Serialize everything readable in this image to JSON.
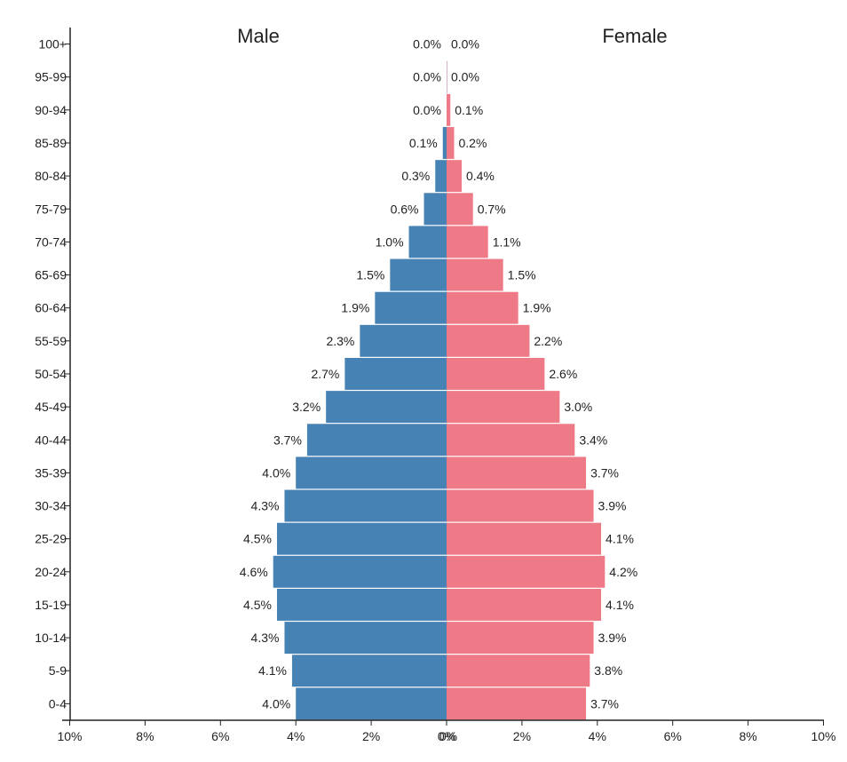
{
  "chart_data": {
    "type": "bar",
    "orientation": "horizontal",
    "categories": [
      "100+",
      "95-99",
      "90-94",
      "85-89",
      "80-84",
      "75-79",
      "70-74",
      "65-69",
      "60-64",
      "55-59",
      "50-54",
      "45-49",
      "40-44",
      "35-39",
      "30-34",
      "25-29",
      "20-24",
      "15-19",
      "10-14",
      "5-9",
      "0-4"
    ],
    "series": [
      {
        "name": "Male",
        "color": "#4682b4",
        "values": [
          0.0,
          0.0,
          0.0,
          0.1,
          0.3,
          0.6,
          1.0,
          1.5,
          1.9,
          2.3,
          2.7,
          3.2,
          3.7,
          4.0,
          4.3,
          4.5,
          4.6,
          4.5,
          4.3,
          4.1,
          4.0
        ]
      },
      {
        "name": "Female",
        "color": "#ef7a87",
        "values": [
          0.0,
          0.0,
          0.1,
          0.2,
          0.4,
          0.7,
          1.1,
          1.5,
          1.9,
          2.2,
          2.6,
          3.0,
          3.4,
          3.7,
          3.9,
          4.1,
          4.2,
          4.1,
          3.9,
          3.8,
          3.7
        ]
      }
    ],
    "value_format": "0.0%",
    "xlim": [
      -10,
      10
    ],
    "x_ticks_left": [
      "10%",
      "8%",
      "6%",
      "4%",
      "2%",
      "0%"
    ],
    "x_ticks_right": [
      "0%",
      "2%",
      "4%",
      "6%",
      "8%",
      "10%"
    ],
    "grid": false,
    "legend": "titles above each side"
  }
}
